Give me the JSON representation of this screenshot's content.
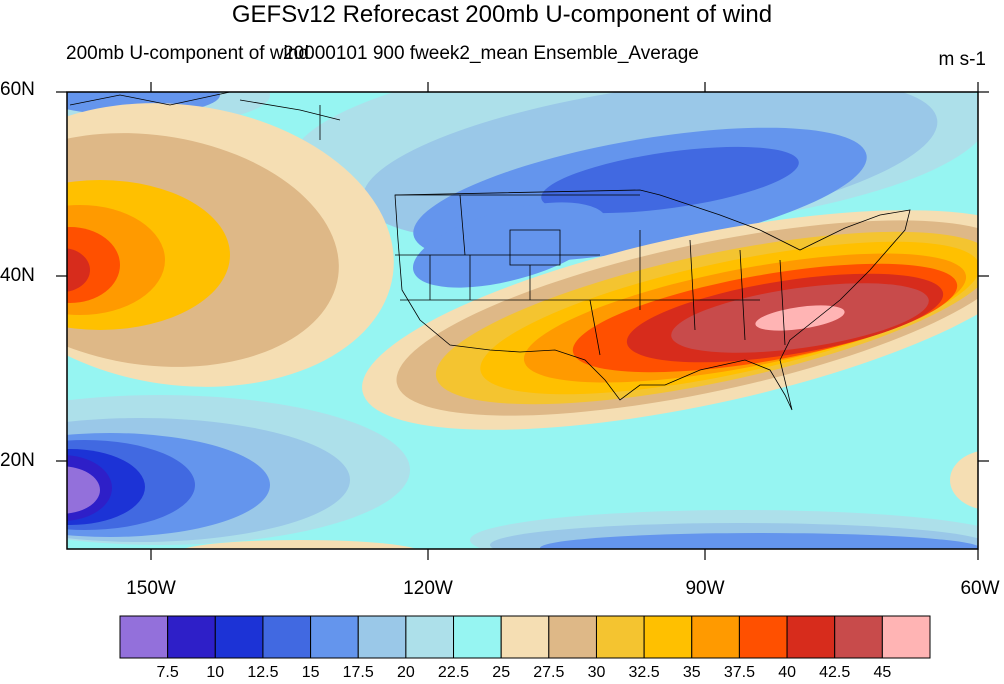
{
  "title": "GEFSv12 Reforecast 200mb U-component of wind",
  "subtitle_left": "200mb U-component of wind",
  "subtitle_center": "20000101 900 fweek2_mean Ensemble_Average",
  "units": "m s-1",
  "lat_labels": [
    "60N",
    "40N",
    "20N"
  ],
  "lon_labels": [
    "150W",
    "120W",
    "90W",
    "60W"
  ],
  "colorbar": {
    "colors": [
      "#9370db",
      "#2e1fc8",
      "#1c33d6",
      "#4169e1",
      "#6495ed",
      "#9ac8e8",
      "#ade0ea",
      "#96f5f2",
      "#f5deb3",
      "#deb887",
      "#f4c430",
      "#ffc000",
      "#ff9a00",
      "#ff5000",
      "#d72c1c",
      "#c84b4b",
      "#ffb4b4"
    ],
    "labels": [
      "7.5",
      "10",
      "12.5",
      "15",
      "17.5",
      "20",
      "22.5",
      "25",
      "27.5",
      "30",
      "32.5",
      "35",
      "37.5",
      "40",
      "42.5",
      "45"
    ]
  },
  "map_colors": {
    "background": "#96f5f2",
    "frame": "#000000"
  }
}
